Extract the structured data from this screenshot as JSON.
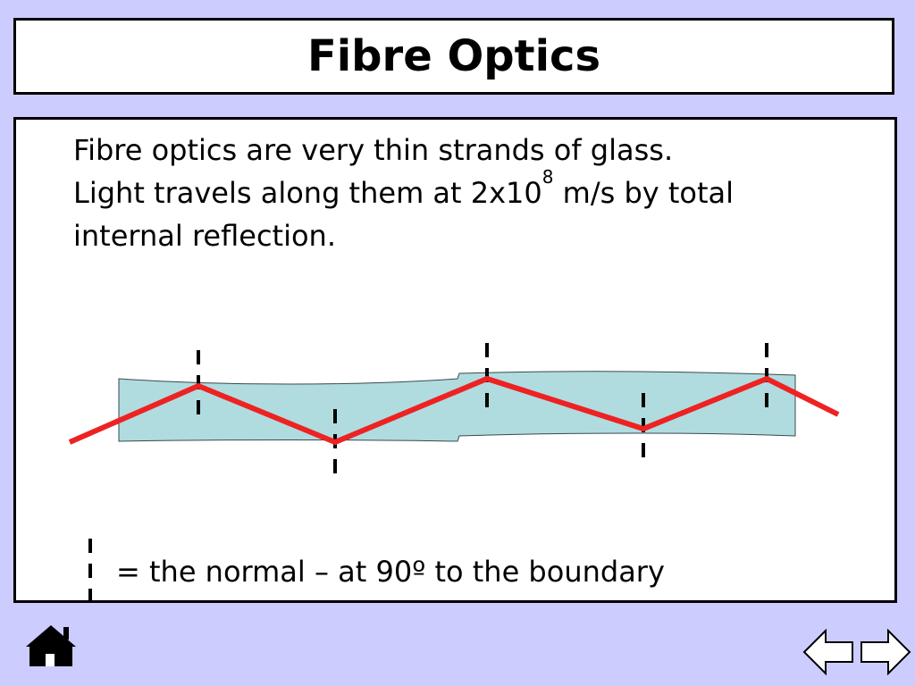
{
  "title": "Fibre Optics",
  "paragraph": {
    "line1": "Fibre optics are very thin strands of glass.",
    "line2_pre": "Light travels along them at 2x10",
    "line2_sup": "8",
    "line2_post": " m/s by total",
    "line3": "internal reflection."
  },
  "legend": {
    "text": "= the normal – at 90º to the boundary"
  },
  "colors": {
    "background": "#ccccff",
    "fibre": "#b0dce0",
    "ray": "#ee2222"
  },
  "nav": {
    "home_icon": "home-icon",
    "back_icon": "back-arrow-icon",
    "forward_icon": "forward-arrow-icon"
  }
}
